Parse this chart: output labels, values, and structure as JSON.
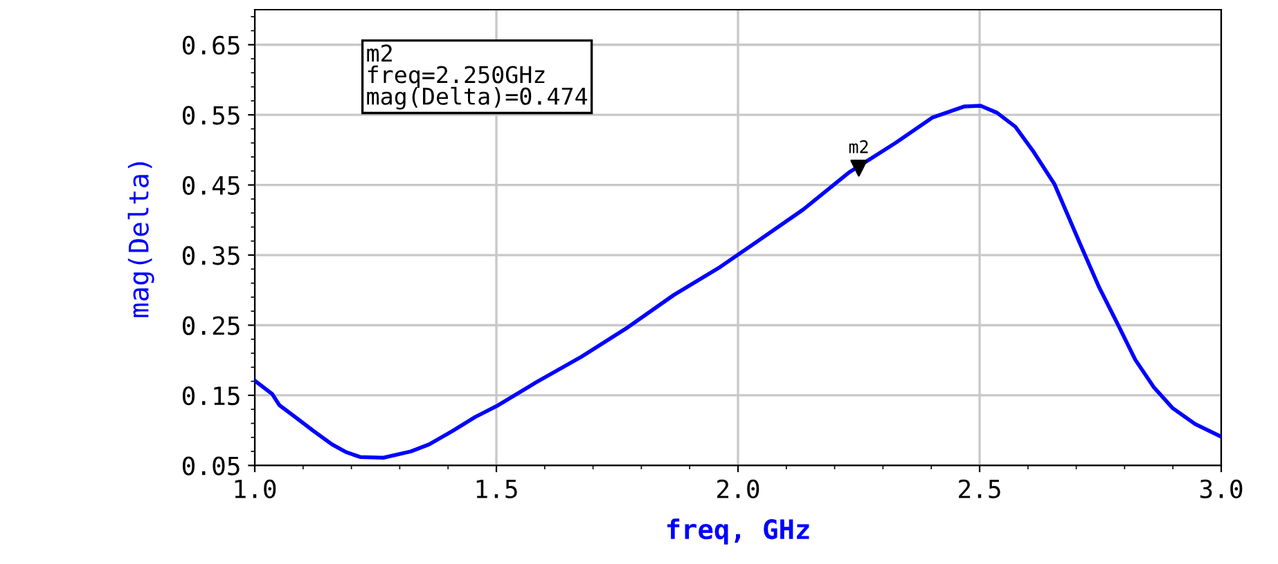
{
  "chart_data": {
    "type": "line",
    "xlabel": "freq, GHz",
    "ylabel": "mag(Delta)",
    "x": [
      1.0,
      1.036,
      1.051,
      1.084,
      1.122,
      1.16,
      1.189,
      1.218,
      1.266,
      1.323,
      1.361,
      1.409,
      1.456,
      1.504,
      1.581,
      1.676,
      1.772,
      1.867,
      1.963,
      2.039,
      2.135,
      2.23,
      2.326,
      2.402,
      2.469,
      2.502,
      2.536,
      2.574,
      2.612,
      2.655,
      2.708,
      2.746,
      2.784,
      2.822,
      2.86,
      2.899,
      2.946,
      3.0
    ],
    "series": [
      {
        "color": "#0000ff",
        "values": [
          0.171,
          0.152,
          0.136,
          0.119,
          0.099,
          0.08,
          0.069,
          0.062,
          0.061,
          0.07,
          0.08,
          0.099,
          0.119,
          0.136,
          0.168,
          0.205,
          0.247,
          0.293,
          0.333,
          0.369,
          0.415,
          0.468,
          0.51,
          0.546,
          0.562,
          0.563,
          0.553,
          0.533,
          0.497,
          0.451,
          0.366,
          0.306,
          0.254,
          0.201,
          0.162,
          0.132,
          0.109,
          0.091
        ]
      },
      {
        "type": "scatter",
        "marker": "triangle",
        "color": "#000000",
        "x": [
          2.25
        ],
        "values": [
          0.474
        ]
      }
    ],
    "xlim": [
      1.0,
      3.0
    ],
    "xticks": [
      {
        "value": 1.0,
        "label": "1.0"
      },
      1.5,
      {
        "value": 2.0,
        "label": "2.0"
      },
      2.5,
      {
        "value": 3.0,
        "label": "3.0"
      }
    ],
    "ylim": [
      0.05,
      0.7
    ],
    "yticks": [
      0.05,
      0.15,
      0.25,
      0.35,
      0.45,
      0.55,
      0.65
    ],
    "grid": true,
    "annotations": [
      {
        "text": "m2",
        "x": 2.25,
        "y": 0.474
      },
      "m2\nfreq=2.250GHz\nmag(Delta)=0.474"
    ]
  }
}
